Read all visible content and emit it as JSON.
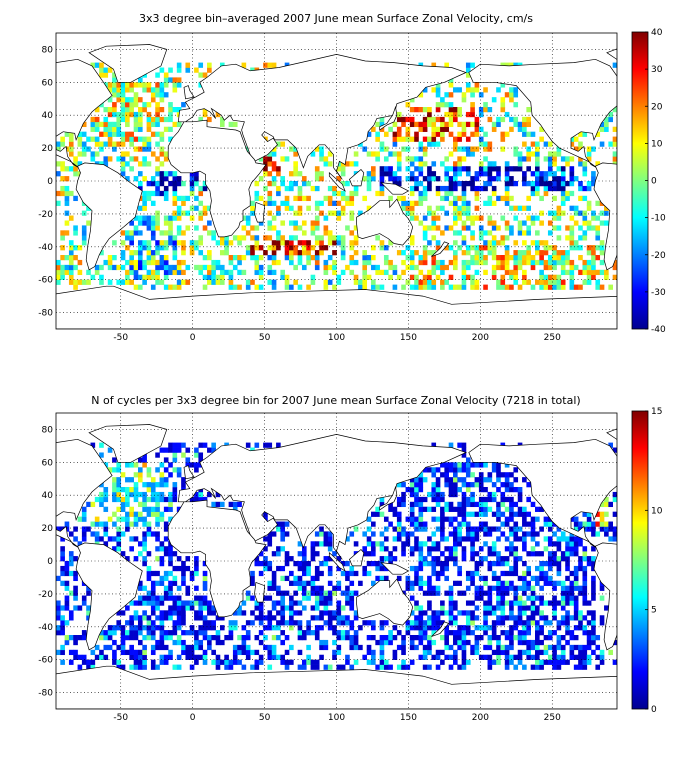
{
  "chart_data": [
    {
      "type": "heatmap",
      "title": "3x3 degree bin–averaged 2007 June mean Surface Zonal Velocity, cm/s",
      "xlabel": "",
      "ylabel": "",
      "xlim": [
        -95,
        295
      ],
      "ylim": [
        -90,
        90
      ],
      "xticks": [
        -50,
        0,
        50,
        100,
        150,
        200,
        250
      ],
      "yticks": [
        80,
        60,
        40,
        20,
        0,
        -20,
        -40,
        -60,
        -80
      ],
      "bin_size_deg": 3,
      "grid": true,
      "colormap": "jet",
      "colorbar": {
        "min": -40,
        "max": 40,
        "ticks": [
          40,
          30,
          20,
          10,
          0,
          -10,
          -20,
          -30,
          -40
        ],
        "position": "right"
      },
      "regions": [
        {
          "lon": [
            -70,
            -20
          ],
          "lat": [
            20,
            60
          ],
          "value": 5
        },
        {
          "lon": [
            -45,
            -10
          ],
          "lat": [
            -60,
            -20
          ],
          "value": -8
        },
        {
          "lon": [
            -30,
            10
          ],
          "lat": [
            -5,
            5
          ],
          "value": -25
        },
        {
          "lon": [
            130,
            280
          ],
          "lat": [
            -5,
            10
          ],
          "value": -30
        },
        {
          "lon": [
            140,
            200
          ],
          "lat": [
            25,
            45
          ],
          "value": 25
        },
        {
          "lon": [
            40,
            100
          ],
          "lat": [
            -45,
            -35
          ],
          "value": 28
        },
        {
          "lon": [
            50,
            60
          ],
          "lat": [
            5,
            15
          ],
          "value": 35
        },
        {
          "lon": [
            150,
            290
          ],
          "lat": [
            -65,
            -40
          ],
          "value": 6
        },
        {
          "lon": [
            -60,
            -10
          ],
          "lat": [
            -10,
            0
          ],
          "value": -20
        }
      ]
    },
    {
      "type": "heatmap",
      "title": "N of cycles per 3x3 degree bin for 2007 June mean Surface Zonal Velocity (7218 in total)",
      "xlabel": "",
      "ylabel": "",
      "xlim": [
        -95,
        295
      ],
      "ylim": [
        -90,
        90
      ],
      "xticks": [
        -50,
        0,
        50,
        100,
        150,
        200,
        250
      ],
      "yticks": [
        80,
        60,
        40,
        20,
        0,
        -20,
        -40,
        -60,
        -80
      ],
      "bin_size_deg": 3,
      "total_count": 7218,
      "grid": true,
      "colormap": "jet",
      "colorbar": {
        "min": 0,
        "max": 15,
        "ticks": [
          15,
          10,
          5,
          0
        ],
        "position": "right"
      },
      "regions": [
        {
          "lon": [
            -70,
            -20
          ],
          "lat": [
            20,
            60
          ],
          "value": 5
        },
        {
          "lon": [
            150,
            280
          ],
          "lat": [
            -60,
            60
          ],
          "value": 2
        },
        {
          "lon": [
            -60,
            20
          ],
          "lat": [
            -60,
            -20
          ],
          "value": 2
        },
        {
          "lon": [
            40,
            120
          ],
          "lat": [
            -45,
            -20
          ],
          "value": 2
        },
        {
          "lon": [
            280,
            290
          ],
          "lat": [
            20,
            40
          ],
          "value": 9
        }
      ]
    }
  ],
  "colors": {
    "jet": [
      "#00008f",
      "#0000ff",
      "#0080ff",
      "#00ffff",
      "#80ff80",
      "#ffff00",
      "#ff8000",
      "#ff0000",
      "#800000"
    ],
    "land_fill": "#ffffff",
    "outline": "#000000"
  }
}
